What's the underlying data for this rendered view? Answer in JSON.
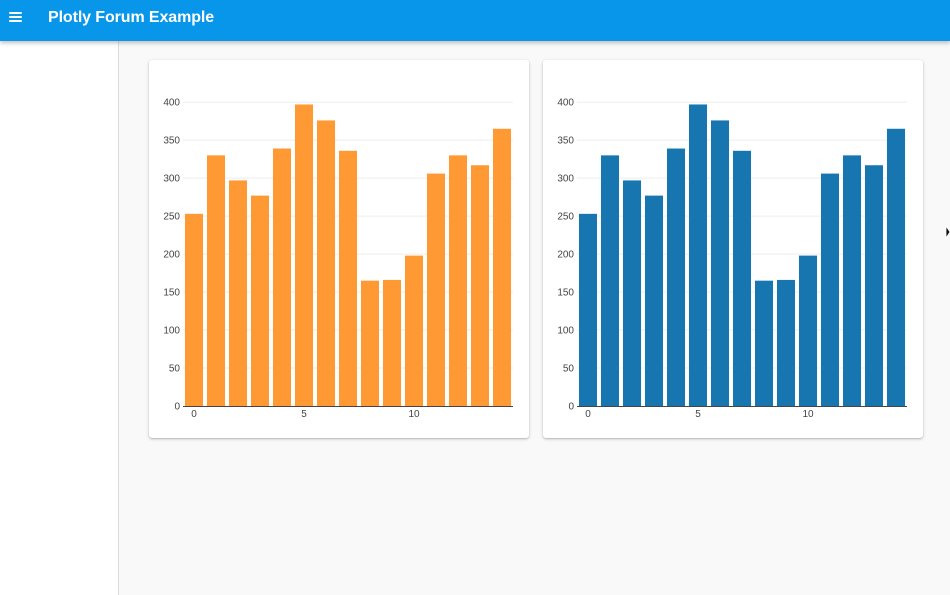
{
  "appbar": {
    "title": "Plotly Forum Example",
    "menu_icon": "hamburger-menu-icon",
    "color": "#0896ea"
  },
  "chart_data": [
    {
      "type": "bar",
      "x": [
        0,
        1,
        2,
        3,
        4,
        5,
        6,
        7,
        8,
        9,
        10,
        11,
        12,
        13,
        14
      ],
      "values": [
        253,
        330,
        297,
        277,
        339,
        397,
        376,
        336,
        165,
        166,
        198,
        306,
        330,
        317,
        365
      ],
      "color": "#ff9933",
      "ylim": [
        0,
        420
      ],
      "yticks": [
        0,
        50,
        100,
        150,
        200,
        250,
        300,
        350,
        400
      ],
      "xticks": [
        0,
        5,
        10
      ],
      "grid": true
    },
    {
      "type": "bar",
      "x": [
        0,
        1,
        2,
        3,
        4,
        5,
        6,
        7,
        8,
        9,
        10,
        11,
        12,
        13,
        14
      ],
      "values": [
        253,
        330,
        297,
        277,
        339,
        397,
        376,
        336,
        165,
        166,
        198,
        306,
        330,
        317,
        365
      ],
      "color": "#1776b0",
      "ylim": [
        0,
        420
      ],
      "yticks": [
        0,
        50,
        100,
        150,
        200,
        250,
        300,
        350,
        400
      ],
      "xticks": [
        0,
        5,
        10
      ],
      "grid": true
    }
  ]
}
